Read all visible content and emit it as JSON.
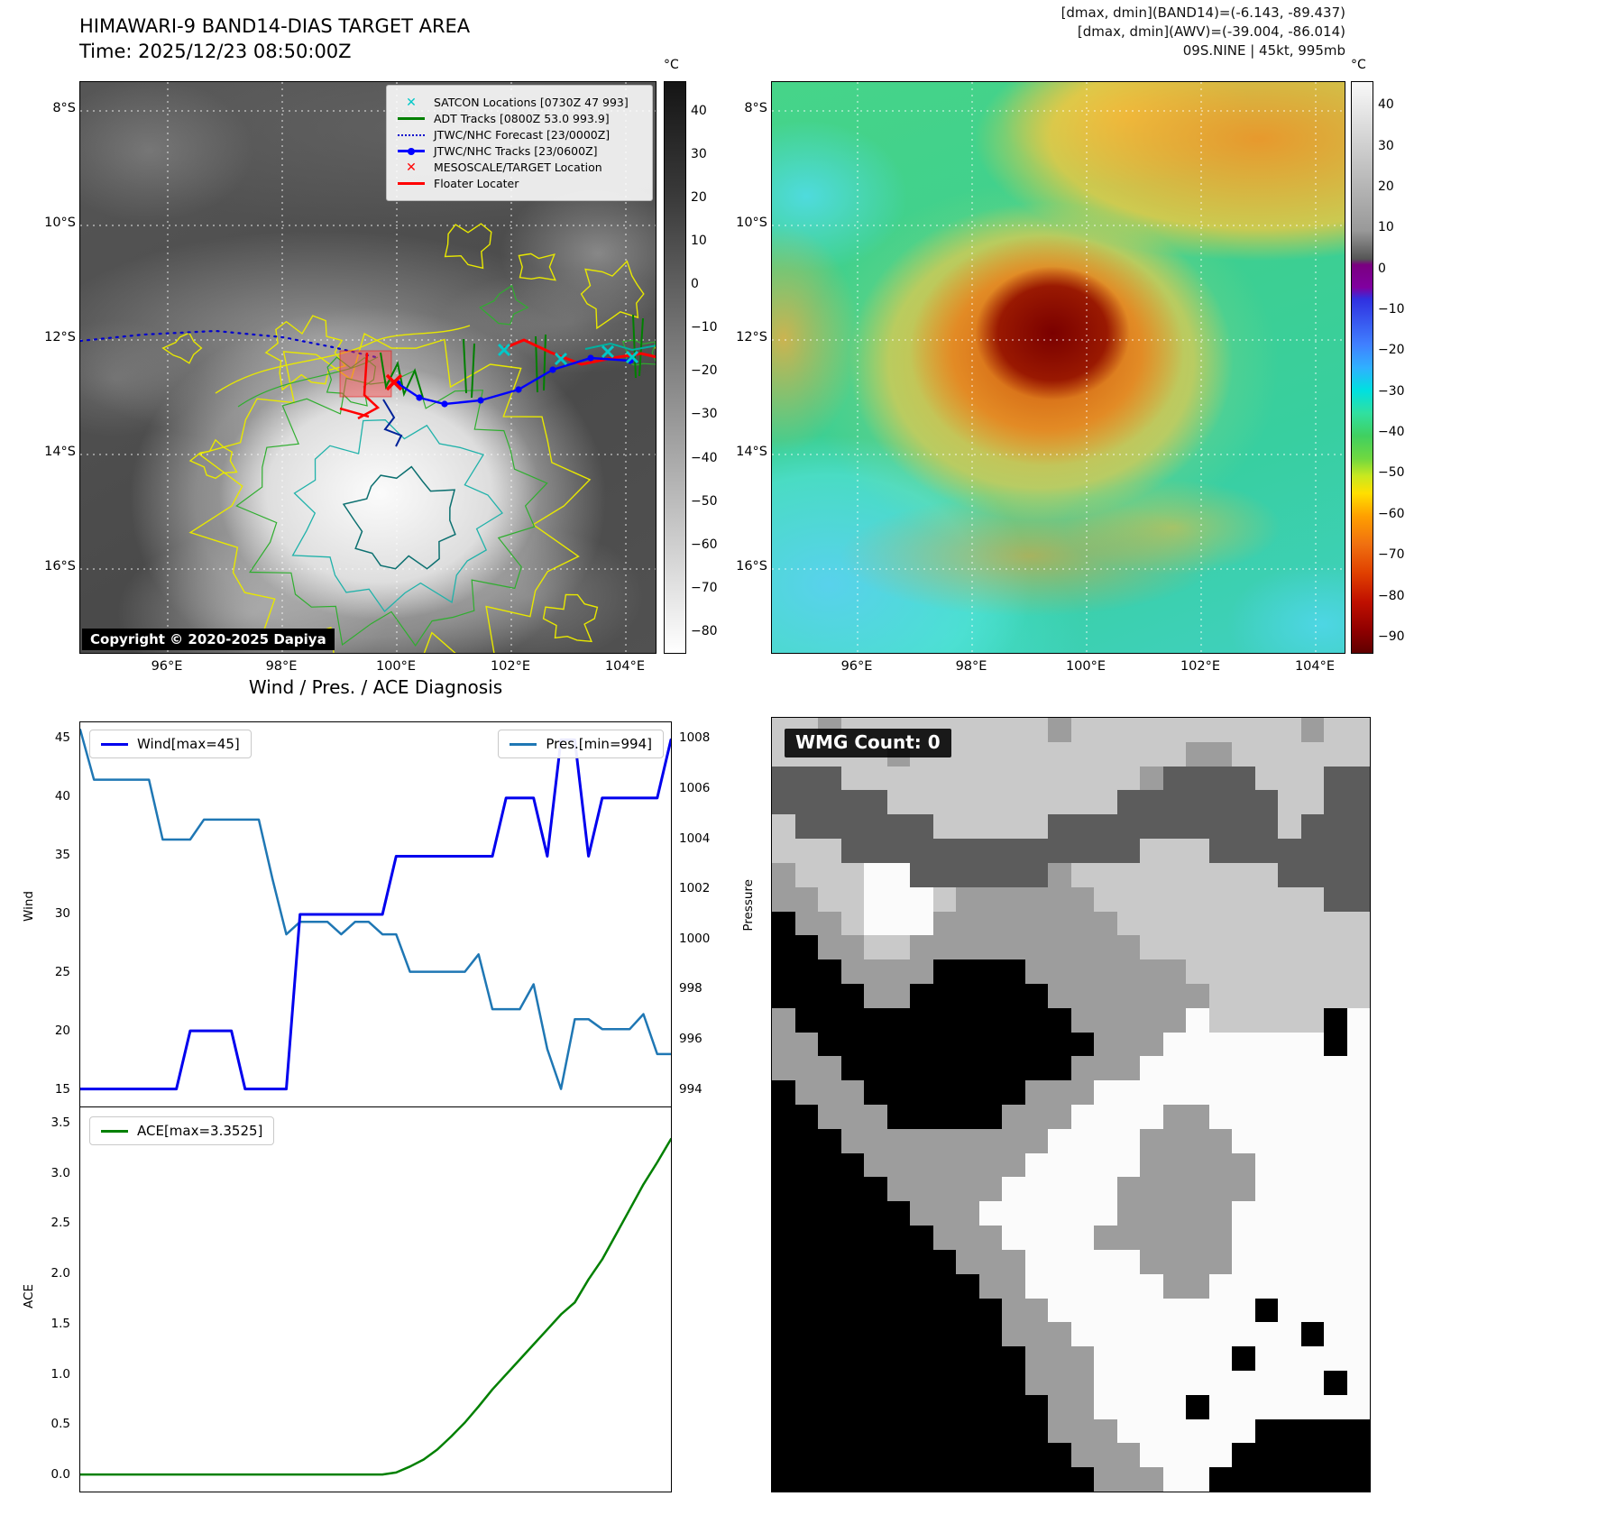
{
  "panel_band14": {
    "title": "HIMAWARI-9 BAND14-DIAS TARGET AREA",
    "subtitle": "Time: 2025/12/23 08:50:00Z",
    "legend": [
      {
        "label": "SATCON Locations [0730Z 47 993]",
        "marker": "x",
        "color": "#00c8c8"
      },
      {
        "label": "ADT Tracks [0800Z 53.0 993.9]",
        "marker": "line",
        "color": "#008000"
      },
      {
        "label": "JTWC/NHC Forecast [23/0000Z]",
        "marker": "dotted",
        "color": "#0000cd"
      },
      {
        "label": "JTWC/NHC Tracks [23/0600Z]",
        "marker": "line-dot",
        "color": "#0000ff"
      },
      {
        "label": "MESOSCALE/TARGET Location",
        "marker": "x",
        "color": "#ff0000"
      },
      {
        "label": "Floater Locater",
        "marker": "line",
        "color": "#ff0000"
      }
    ],
    "copyright": "Copyright © 2020-2025 Dapiya",
    "colorbar": {
      "unit": "°C",
      "vmax": 47,
      "vmin": -85,
      "ticks": [
        40,
        30,
        20,
        10,
        0,
        -10,
        -20,
        -30,
        -40,
        -50,
        -60,
        -70,
        -80
      ]
    },
    "lat_ticks": [
      "8°S",
      "10°S",
      "12°S",
      "14°S",
      "16°S"
    ],
    "lon_ticks": [
      "96°E",
      "98°E",
      "100°E",
      "102°E",
      "104°E"
    ]
  },
  "panel_awv": {
    "annotation_line1": "[dmax, dmin](BAND14)=(-6.143, -89.437)",
    "annotation_line2": "[dmax, dmin](AWV)=(-39.004, -86.014)",
    "annotation_line3": "09S.NINE | 45kt, 995mb",
    "colorbar": {
      "unit": "°C",
      "vmax": 46,
      "vmin": -94,
      "ticks": [
        40,
        30,
        20,
        10,
        0,
        -10,
        -20,
        -30,
        -40,
        -50,
        -60,
        -70,
        -80,
        -90
      ]
    },
    "lat_ticks": [
      "8°S",
      "10°S",
      "12°S",
      "14°S",
      "16°S"
    ],
    "lon_ticks": [
      "96°E",
      "98°E",
      "100°E",
      "102°E",
      "104°E"
    ]
  },
  "chart_data": [
    {
      "id": "wind_pres",
      "type": "line",
      "title": "Wind / Pres. / ACE Diagnosis",
      "ylabel_left": "Wind",
      "ylabel_right": "Pressure",
      "ylim_left": [
        13.5,
        46.5
      ],
      "ylim_right": [
        993.3,
        1008.7
      ],
      "yticks_left": [
        15,
        20,
        25,
        30,
        35,
        40,
        45
      ],
      "yticks_right": [
        994,
        996,
        998,
        1000,
        1002,
        1004,
        1006,
        1008
      ],
      "grid": false,
      "legend_position": [
        "upper left",
        "upper right"
      ],
      "series": [
        {
          "name": "Wind[max=45]",
          "axis": "left",
          "color": "#0000ee",
          "linewidth": 3,
          "values": [
            15,
            15,
            15,
            15,
            15,
            15,
            15,
            15,
            20,
            20,
            20,
            20,
            15,
            15,
            15,
            15,
            30,
            30,
            30,
            30,
            30,
            30,
            30,
            35,
            35,
            35,
            35,
            35,
            35,
            35,
            35,
            40,
            40,
            40,
            35,
            45,
            45,
            35,
            40,
            40,
            40,
            40,
            40,
            45
          ]
        },
        {
          "name": "Pres.[min=994]",
          "axis": "right",
          "color": "#1f77b4",
          "linewidth": 2.5,
          "values": [
            1008.4,
            1006.4,
            1006.4,
            1006.4,
            1006.4,
            1006.4,
            1004,
            1004,
            1004,
            1004.8,
            1004.8,
            1004.8,
            1004.8,
            1004.8,
            1002.4,
            1000.2,
            1000.7,
            1000.7,
            1000.7,
            1000.2,
            1000.7,
            1000.7,
            1000.2,
            1000.2,
            998.7,
            998.7,
            998.7,
            998.7,
            998.7,
            999.4,
            997.2,
            997.2,
            997.2,
            998.2,
            995.6,
            994,
            996.8,
            996.8,
            996.4,
            996.4,
            996.4,
            997,
            995.4,
            995.4
          ]
        }
      ]
    },
    {
      "id": "ace",
      "type": "line",
      "ylabel": "ACE",
      "ylim": [
        -0.17,
        3.67
      ],
      "yticks": [
        0,
        0.5,
        1,
        1.5,
        2,
        2.5,
        3,
        3.5
      ],
      "grid": false,
      "legend_position": [
        "upper left"
      ],
      "series": [
        {
          "name": "ACE[max=3.3525]",
          "color": "#008000",
          "linewidth": 2.5,
          "values": [
            0,
            0,
            0,
            0,
            0,
            0,
            0,
            0,
            0,
            0,
            0,
            0,
            0,
            0,
            0,
            0,
            0,
            0,
            0,
            0,
            0,
            0,
            0,
            0.02,
            0.08,
            0.15,
            0.25,
            0.38,
            0.52,
            0.68,
            0.85,
            1.0,
            1.15,
            1.3,
            1.45,
            1.6,
            1.72,
            1.95,
            2.15,
            2.4,
            2.65,
            2.9,
            3.12,
            3.3525
          ]
        }
      ]
    }
  ],
  "wmg": {
    "label": "WMG Count: 0",
    "palette": {
      "0": "#000000",
      "1": "#5c5c5c",
      "2": "#9d9d9d",
      "3": "#c9c9c9",
      "4": "#fbfbfb"
    },
    "grid": [
      "33233333333323333333333233",
      "33333233333333333322333333",
      "11133333333333332111133311",
      "11111333333333311111113311",
      "31111113333311111111113111",
      "33311111111111113331111111",
      "23334411111123333333331111",
      "22334443222222333333333311",
      "02234442222222233333333333",
      "00223322222222223333333333",
      "00022220000222222233333333",
      "00002200000022222223333333",
      "20000000000002222243333304",
      "22000000000000222444444404",
      "22200000000002224444444444",
      "02220000000222444444444444",
      "00222000002224444224444444",
      "00022222222244442222444444",
      "00002222222444442222244444",
      "00000222224444422222244444",
      "00000022244444422222444444",
      "00000002224444222222444444",
      "00000000222444442222444444",
      "00000000022444444224444444",
      "00000000002244444444404444",
      "00000000002224444444444044",
      "00000000000222444444044444",
      "00000000000222444444444404",
      "00000000000022444404444444",
      "00000000000022244444400000",
      "00000000000002224444000000",
      "00000000000000222440000000"
    ]
  }
}
